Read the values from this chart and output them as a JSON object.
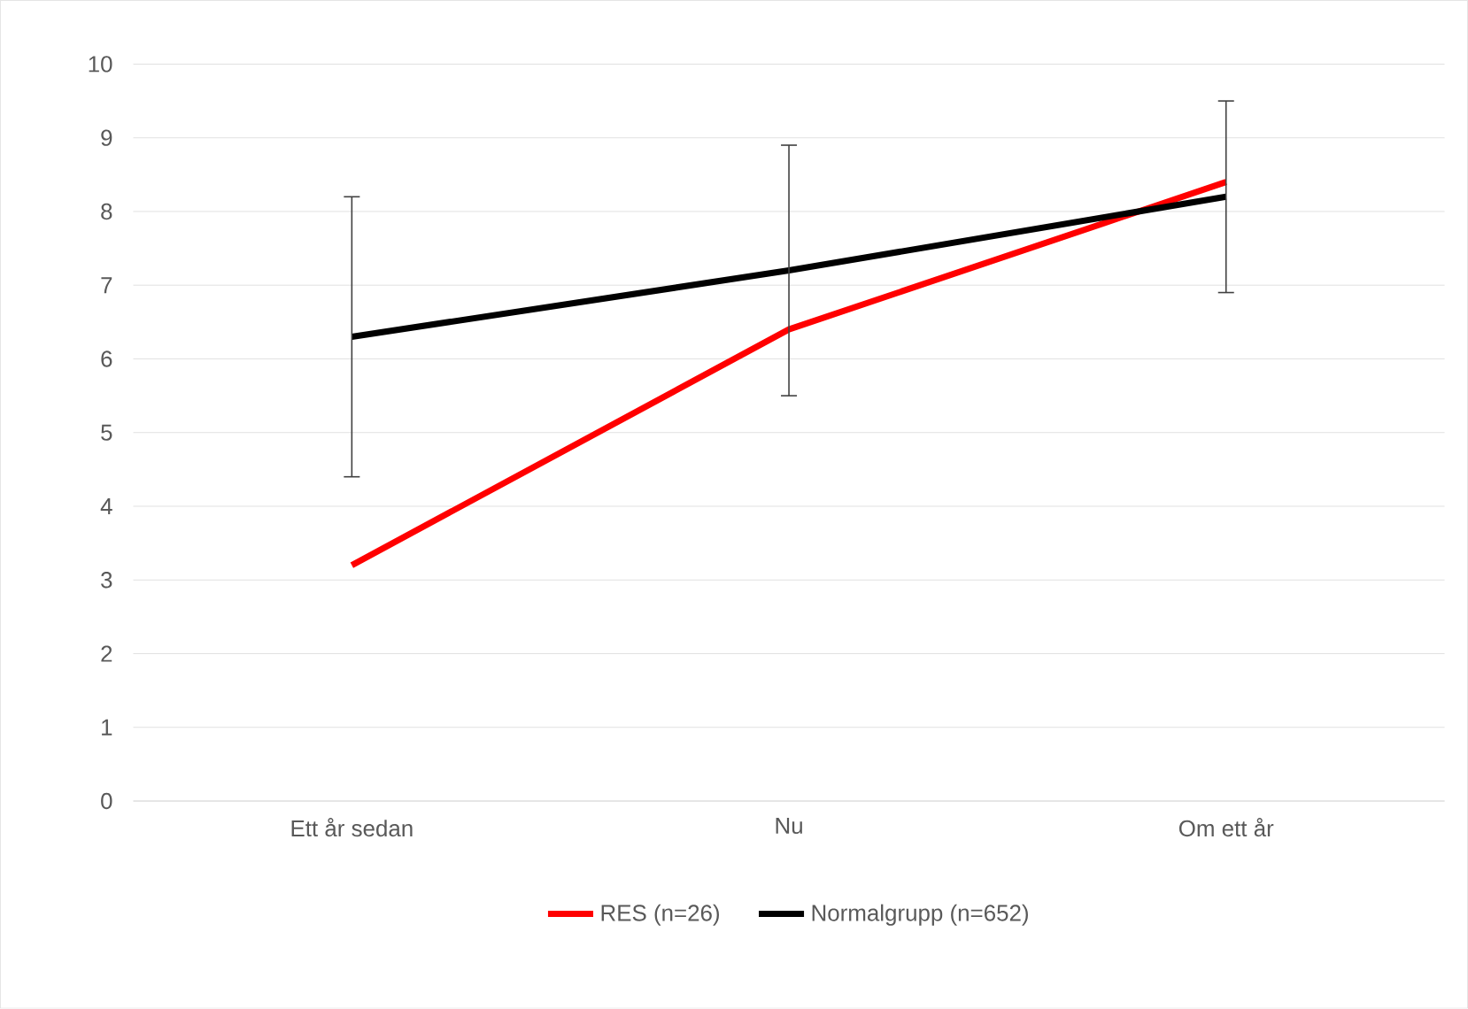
{
  "chart_data": {
    "type": "line",
    "categories": [
      "Ett år sedan",
      "Nu",
      "Om ett år"
    ],
    "series": [
      {
        "name": "RES (n=26)",
        "color": "#ff0000",
        "values": [
          3.2,
          6.4,
          8.4
        ]
      },
      {
        "name": "Normalgrupp (n=652)",
        "color": "#000000",
        "values": [
          6.3,
          7.2,
          8.2
        ],
        "errors": [
          [
            4.4,
            8.2
          ],
          [
            5.5,
            8.9
          ],
          [
            6.9,
            9.5
          ]
        ]
      }
    ],
    "ylim": [
      0,
      10
    ],
    "yticks": [
      0,
      1,
      2,
      3,
      4,
      5,
      6,
      7,
      8,
      9,
      10
    ],
    "grid": "y",
    "legend": "bottom",
    "marker": "none",
    "line_style": "solid"
  }
}
